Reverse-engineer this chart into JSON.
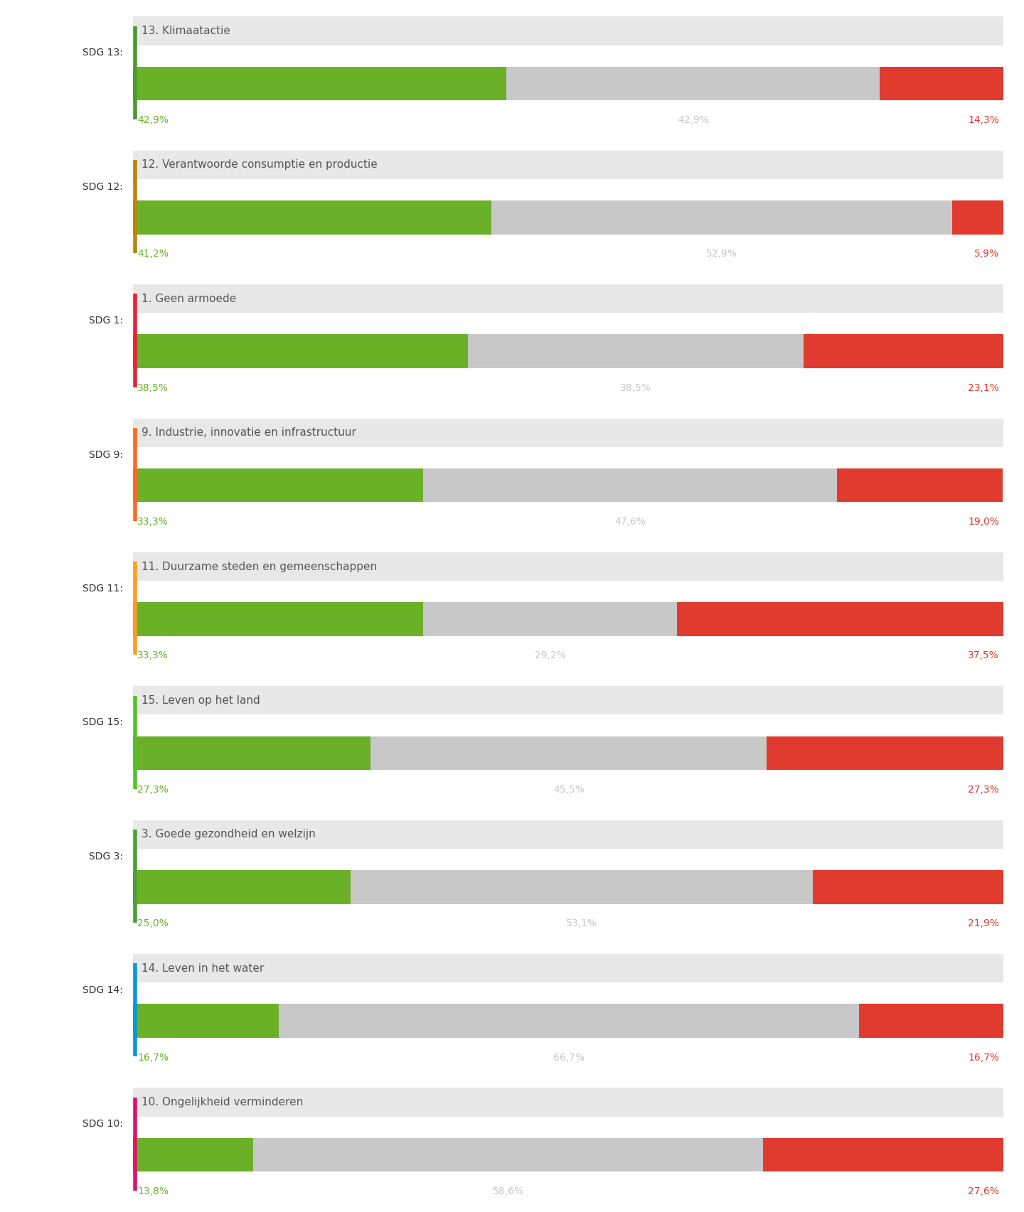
{
  "sdgs": [
    {
      "label": "SDG 13:",
      "title": "13. Klimaatactie",
      "green": 42.9,
      "grey": 42.9,
      "red": 14.3,
      "sdg_color": "#4a9a2f",
      "green_label": "42,9%",
      "grey_label": "42,9%",
      "red_label": "14,3%"
    },
    {
      "label": "SDG 12:",
      "title": "12. Verantwoorde consumptie en productie",
      "green": 41.2,
      "grey": 52.9,
      "red": 5.9,
      "sdg_color": "#b8860b",
      "green_label": "41,2%",
      "grey_label": "52,9%",
      "red_label": "5,9%"
    },
    {
      "label": "SDG 1:",
      "title": "1. Geen armoede",
      "green": 38.5,
      "grey": 38.5,
      "red": 23.1,
      "sdg_color": "#e5243b",
      "green_label": "38,5%",
      "grey_label": "38,5%",
      "red_label": "23,1%"
    },
    {
      "label": "SDG 9:",
      "title": "9. Industrie, innovatie en infrastructuur",
      "green": 33.3,
      "grey": 47.6,
      "red": 19.0,
      "sdg_color": "#fd6925",
      "green_label": "33,3%",
      "grey_label": "47,6%",
      "red_label": "19,0%"
    },
    {
      "label": "SDG 11:",
      "title": "11. Duurzame steden en gemeenschappen",
      "green": 33.3,
      "grey": 29.2,
      "red": 37.5,
      "sdg_color": "#fd9d24",
      "green_label": "33,3%",
      "grey_label": "29,2%",
      "red_label": "37,5%"
    },
    {
      "label": "SDG 15:",
      "title": "15. Leven op het land",
      "green": 27.3,
      "grey": 45.5,
      "red": 27.3,
      "sdg_color": "#56c02b",
      "green_label": "27,3%",
      "grey_label": "45,5%",
      "red_label": "27,3%"
    },
    {
      "label": "SDG 3:",
      "title": "3. Goede gezondheid en welzijn",
      "green": 25.0,
      "grey": 53.1,
      "red": 21.9,
      "sdg_color": "#4c9f38",
      "green_label": "25,0%",
      "grey_label": "53,1%",
      "red_label": "21,9%"
    },
    {
      "label": "SDG 14:",
      "title": "14. Leven in het water",
      "green": 16.7,
      "grey": 66.7,
      "red": 16.7,
      "sdg_color": "#0a97d9",
      "green_label": "16,7%",
      "grey_label": "66,7%",
      "red_label": "16,7%"
    },
    {
      "label": "SDG 10:",
      "title": "10. Ongelijkheid verminderen",
      "green": 13.8,
      "grey": 58.6,
      "red": 27.6,
      "sdg_color": "#dd1367",
      "green_label": "13,8%",
      "grey_label": "58,6%",
      "red_label": "27,6%"
    }
  ],
  "green_color": "#6ab128",
  "grey_color": "#c8c8c8",
  "red_color": "#e03b2e",
  "title_bg_color": "#e8e8e8",
  "bg_color": "#ffffff",
  "bar_height": 0.45,
  "title_text_color": "#555555",
  "label_fontsize": 10,
  "title_fontsize": 11,
  "pct_fontsize": 10
}
